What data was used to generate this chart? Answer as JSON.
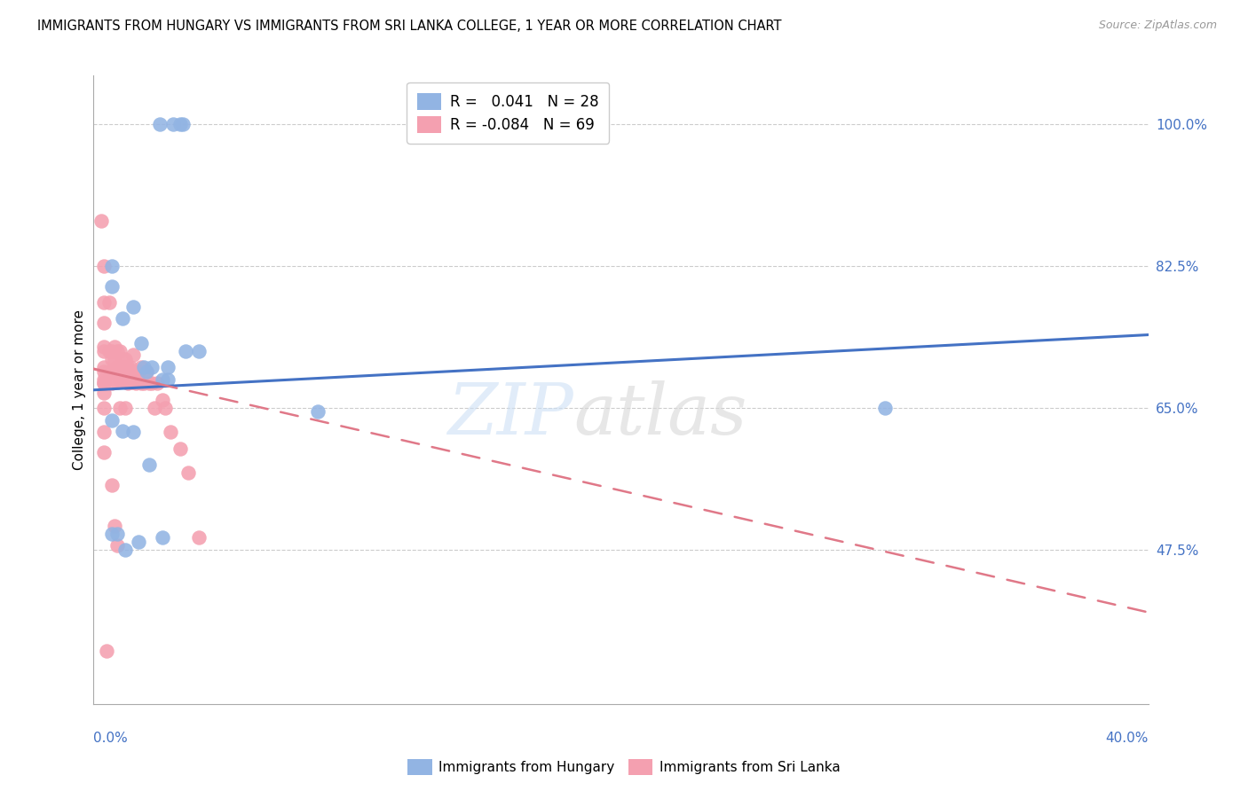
{
  "title": "IMMIGRANTS FROM HUNGARY VS IMMIGRANTS FROM SRI LANKA COLLEGE, 1 YEAR OR MORE CORRELATION CHART",
  "source": "Source: ZipAtlas.com",
  "ylabel": "College, 1 year or more",
  "xlim": [
    0.0,
    0.4
  ],
  "ylim": [
    0.285,
    1.06
  ],
  "ytick_labels": [
    "100.0%",
    "82.5%",
    "65.0%",
    "47.5%"
  ],
  "ytick_values": [
    1.0,
    0.825,
    0.65,
    0.475
  ],
  "xtick_left_label": "0.0%",
  "xtick_right_label": "40.0%",
  "color_hungary": "#92b4e3",
  "color_srilanka": "#f4a0b0",
  "color_hungary_line": "#4472c4",
  "color_srilanka_line": "#e07888",
  "legend_hungary_r": " 0.041",
  "legend_hungary_n": "28",
  "legend_srilanka_r": "-0.084",
  "legend_srilanka_n": "69",
  "hungary_x": [
    0.025,
    0.03,
    0.033,
    0.034,
    0.007,
    0.007,
    0.011,
    0.015,
    0.018,
    0.019,
    0.02,
    0.022,
    0.026,
    0.028,
    0.028,
    0.035,
    0.04,
    0.007,
    0.011,
    0.015,
    0.021,
    0.026,
    0.085,
    0.007,
    0.009,
    0.012,
    0.017,
    0.3
  ],
  "hungary_y": [
    1.0,
    1.0,
    1.0,
    1.0,
    0.825,
    0.8,
    0.76,
    0.775,
    0.73,
    0.7,
    0.695,
    0.7,
    0.685,
    0.685,
    0.7,
    0.72,
    0.72,
    0.635,
    0.622,
    0.62,
    0.58,
    0.49,
    0.645,
    0.495,
    0.495,
    0.475,
    0.485,
    0.65
  ],
  "srilanka_x": [
    0.003,
    0.004,
    0.004,
    0.004,
    0.004,
    0.004,
    0.004,
    0.004,
    0.004,
    0.004,
    0.004,
    0.004,
    0.004,
    0.006,
    0.006,
    0.006,
    0.007,
    0.007,
    0.007,
    0.007,
    0.008,
    0.008,
    0.008,
    0.009,
    0.009,
    0.009,
    0.009,
    0.01,
    0.01,
    0.01,
    0.01,
    0.01,
    0.011,
    0.011,
    0.012,
    0.012,
    0.012,
    0.012,
    0.013,
    0.013,
    0.013,
    0.014,
    0.014,
    0.015,
    0.015,
    0.015,
    0.016,
    0.016,
    0.017,
    0.018,
    0.018,
    0.019,
    0.02,
    0.021,
    0.022,
    0.023,
    0.024,
    0.026,
    0.027,
    0.029,
    0.033,
    0.036,
    0.04,
    0.004,
    0.004,
    0.005,
    0.007,
    0.008,
    0.009
  ],
  "srilanka_y": [
    0.88,
    0.825,
    0.78,
    0.755,
    0.725,
    0.72,
    0.7,
    0.695,
    0.685,
    0.68,
    0.68,
    0.668,
    0.65,
    0.78,
    0.72,
    0.695,
    0.72,
    0.71,
    0.695,
    0.68,
    0.725,
    0.71,
    0.695,
    0.72,
    0.7,
    0.695,
    0.682,
    0.72,
    0.7,
    0.695,
    0.685,
    0.65,
    0.71,
    0.695,
    0.71,
    0.7,
    0.685,
    0.65,
    0.7,
    0.695,
    0.68,
    0.7,
    0.682,
    0.715,
    0.695,
    0.682,
    0.695,
    0.68,
    0.695,
    0.7,
    0.68,
    0.68,
    0.695,
    0.68,
    0.68,
    0.65,
    0.68,
    0.66,
    0.65,
    0.62,
    0.6,
    0.57,
    0.49,
    0.62,
    0.595,
    0.35,
    0.555,
    0.505,
    0.48
  ],
  "hungary_line_x0": 0.0,
  "hungary_line_y0": 0.672,
  "hungary_line_x1": 0.4,
  "hungary_line_y1": 0.74,
  "srilanka_line_x0": 0.0,
  "srilanka_line_y0": 0.698,
  "srilanka_line_x1": 0.4,
  "srilanka_line_y1": 0.398
}
